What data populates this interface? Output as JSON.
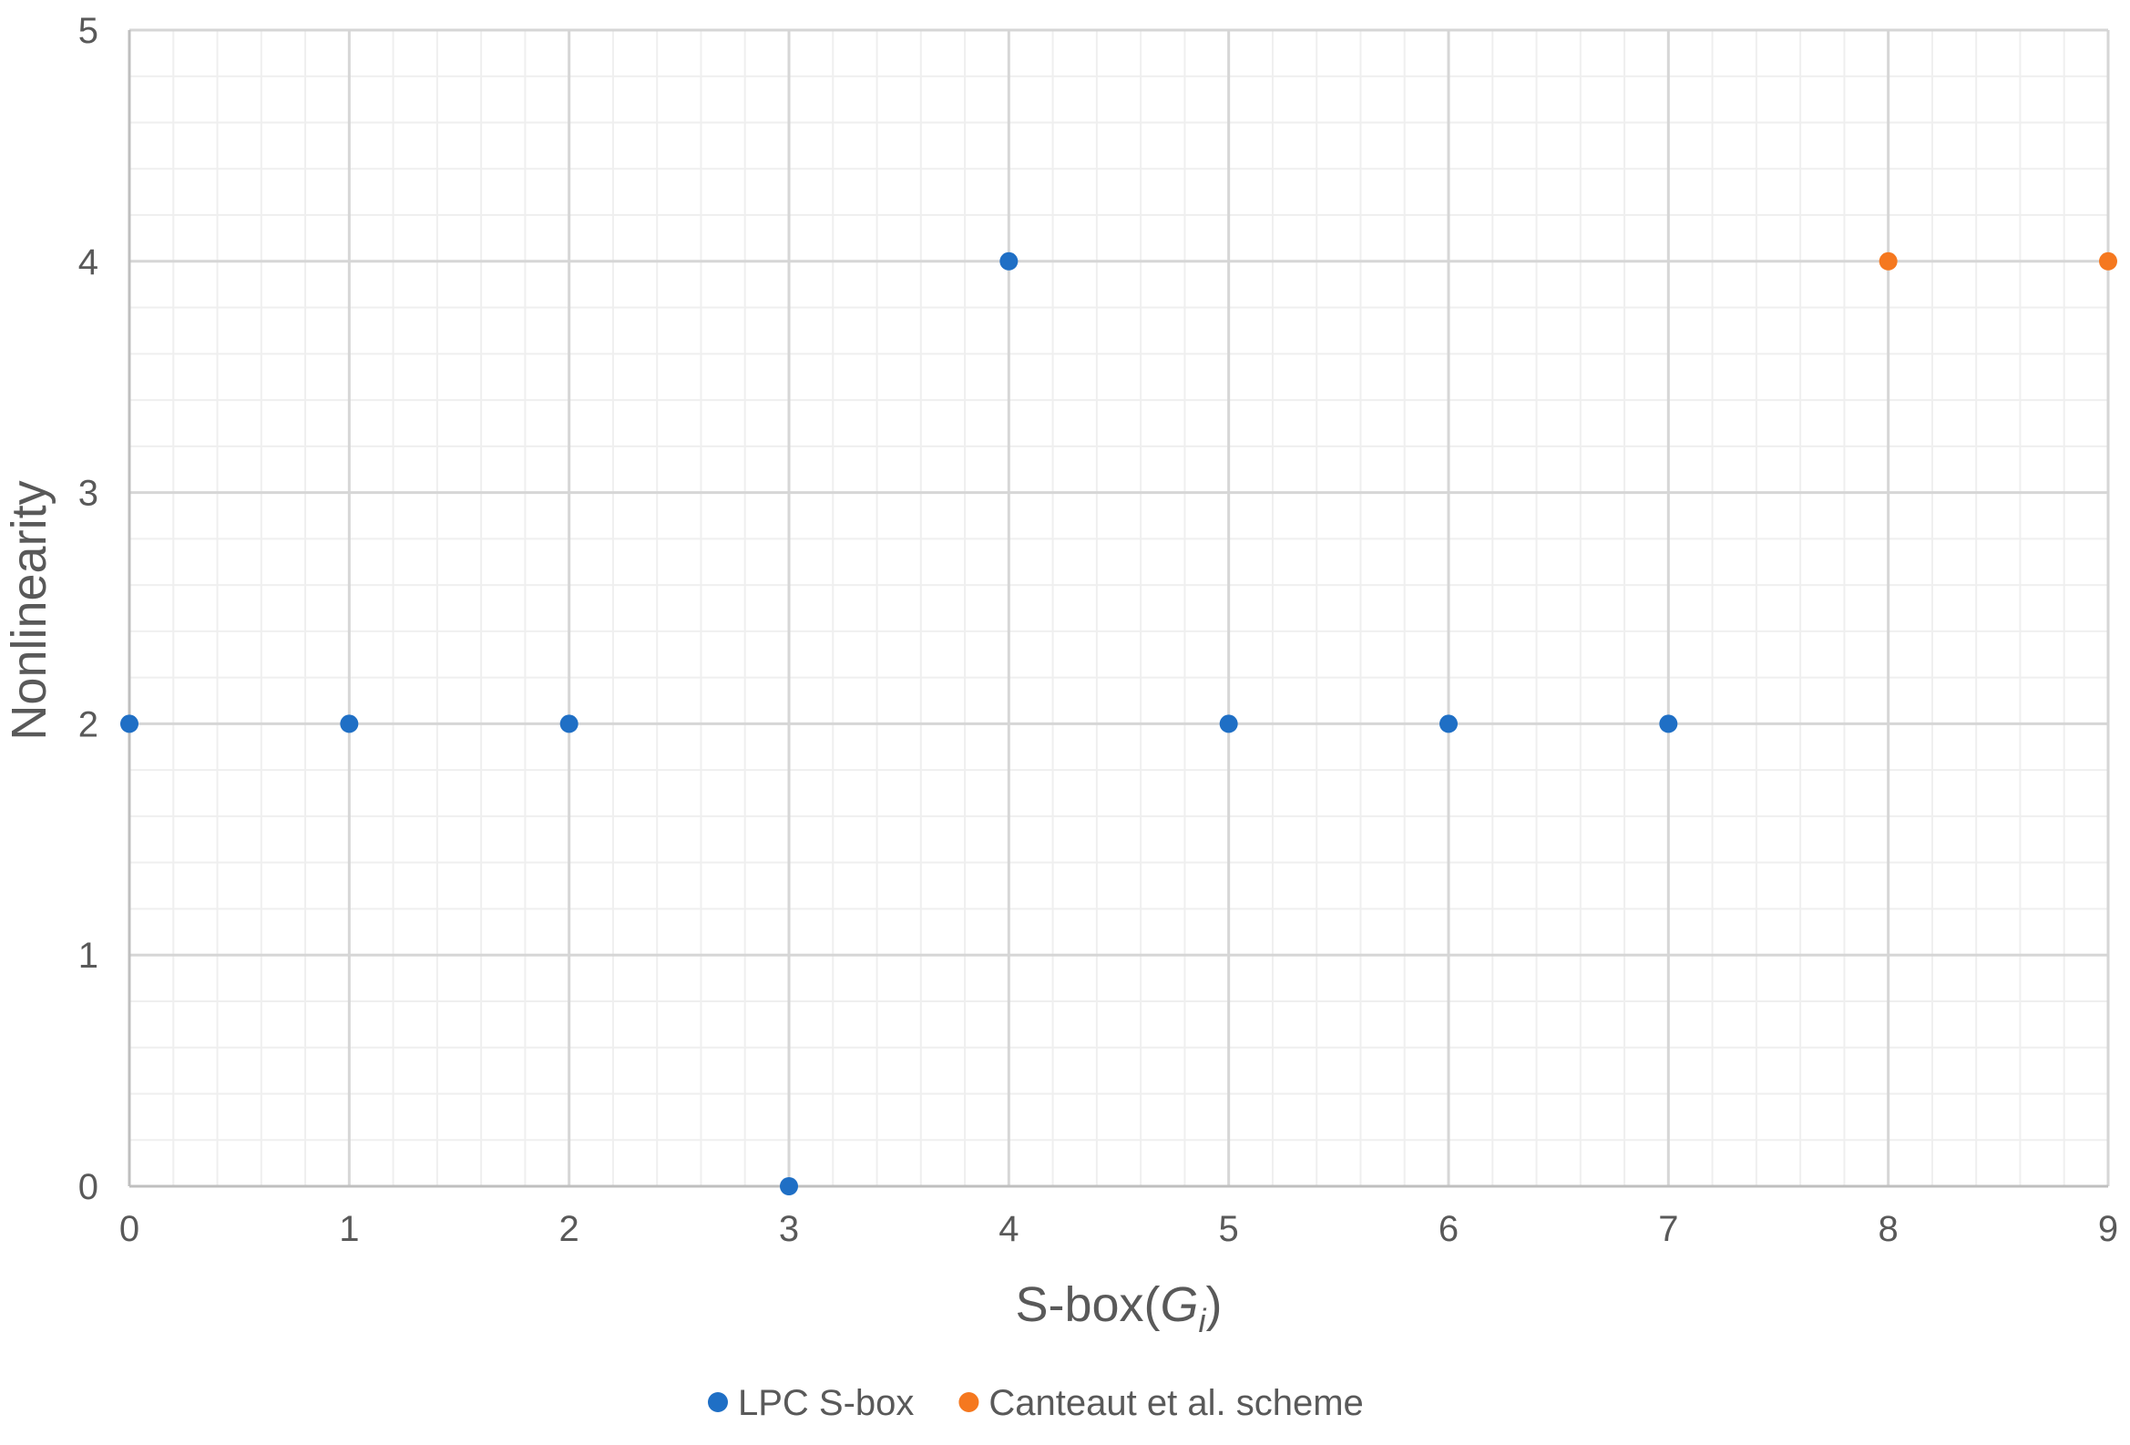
{
  "chart_data": {
    "type": "scatter",
    "title": "",
    "xlabel": {
      "main": "S-box(",
      "var": "G",
      "sub": "i",
      "close": ")"
    },
    "ylabel": "Nonlinearity",
    "xlim": [
      0,
      9
    ],
    "ylim": [
      0,
      5
    ],
    "xticks": [
      "0",
      "1",
      "2",
      "3",
      "4",
      "5",
      "6",
      "7",
      "8",
      "9"
    ],
    "yticks": [
      "0",
      "1",
      "2",
      "3",
      "4",
      "5"
    ],
    "grid": {
      "major": true,
      "minor": true,
      "minor_per_major": 5
    },
    "legend": "bottom",
    "series": [
      {
        "name": "LPC S-box",
        "color": "#1f6fc5",
        "points": [
          [
            0,
            2
          ],
          [
            1,
            2
          ],
          [
            2,
            2
          ],
          [
            3,
            0
          ],
          [
            4,
            4
          ],
          [
            5,
            2
          ],
          [
            6,
            2
          ],
          [
            7,
            2
          ]
        ]
      },
      {
        "name": "Canteaut et al. scheme",
        "color": "#f5781f",
        "points": [
          [
            8,
            4
          ],
          [
            9,
            4
          ]
        ]
      }
    ]
  }
}
